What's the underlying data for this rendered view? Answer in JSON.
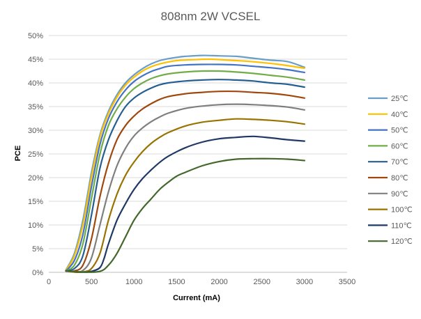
{
  "chart_data": {
    "type": "line",
    "title": "808nm 2W VCSEL",
    "xlabel": "Current (mA)",
    "ylabel": "PCE",
    "xlim": [
      0,
      3500
    ],
    "ylim": [
      0,
      50
    ],
    "x_ticks": [
      "0",
      "500",
      "1000",
      "1500",
      "2000",
      "2500",
      "3000",
      "3500"
    ],
    "y_ticks": [
      "0%",
      "5%",
      "10%",
      "15%",
      "20%",
      "25%",
      "30%",
      "35%",
      "40%",
      "45%",
      "50%"
    ],
    "grid": "horizontal",
    "legend_position": "right",
    "series": [
      {
        "name": "25℃",
        "color": "#6a9ec7",
        "points": [
          [
            200,
            0.5
          ],
          [
            300,
            4
          ],
          [
            400,
            11
          ],
          [
            500,
            21
          ],
          [
            600,
            29
          ],
          [
            700,
            34
          ],
          [
            800,
            37.5
          ],
          [
            900,
            40
          ],
          [
            1000,
            41.7
          ],
          [
            1100,
            43
          ],
          [
            1200,
            44
          ],
          [
            1300,
            44.7
          ],
          [
            1400,
            45.1
          ],
          [
            1500,
            45.4
          ],
          [
            1600,
            45.6
          ],
          [
            1800,
            45.8
          ],
          [
            2000,
            45.7
          ],
          [
            2200,
            45.6
          ],
          [
            2400,
            45.2
          ],
          [
            2600,
            44.8
          ],
          [
            2800,
            44.5
          ],
          [
            3000,
            43.3
          ]
        ]
      },
      {
        "name": "40℃",
        "color": "#ffc000",
        "points": [
          [
            200,
            0.4
          ],
          [
            300,
            3.5
          ],
          [
            400,
            10
          ],
          [
            500,
            20
          ],
          [
            600,
            28.5
          ],
          [
            700,
            33.5
          ],
          [
            800,
            37
          ],
          [
            900,
            39.5
          ],
          [
            1000,
            41.2
          ],
          [
            1100,
            42.5
          ],
          [
            1200,
            43.4
          ],
          [
            1300,
            44
          ],
          [
            1400,
            44.4
          ],
          [
            1500,
            44.7
          ],
          [
            1700,
            44.9
          ],
          [
            1900,
            45
          ],
          [
            2100,
            44.8
          ],
          [
            2300,
            44.6
          ],
          [
            2500,
            44.3
          ],
          [
            2700,
            43.9
          ],
          [
            3000,
            43.1
          ]
        ]
      },
      {
        "name": "50℃",
        "color": "#4472c4",
        "points": [
          [
            200,
            0.3
          ],
          [
            300,
            2.5
          ],
          [
            400,
            8
          ],
          [
            500,
            18
          ],
          [
            600,
            27
          ],
          [
            700,
            32.5
          ],
          [
            800,
            36
          ],
          [
            900,
            38.5
          ],
          [
            1000,
            40.3
          ],
          [
            1100,
            41.5
          ],
          [
            1200,
            42.4
          ],
          [
            1300,
            43
          ],
          [
            1400,
            43.5
          ],
          [
            1600,
            43.8
          ],
          [
            1800,
            43.9
          ],
          [
            2000,
            43.9
          ],
          [
            2200,
            43.8
          ],
          [
            2400,
            43.5
          ],
          [
            2600,
            43.2
          ],
          [
            2800,
            42.8
          ],
          [
            3000,
            42.2
          ]
        ]
      },
      {
        "name": "60℃",
        "color": "#70ad47",
        "points": [
          [
            200,
            0.3
          ],
          [
            300,
            1.5
          ],
          [
            400,
            6
          ],
          [
            500,
            15.5
          ],
          [
            600,
            25
          ],
          [
            700,
            31
          ],
          [
            800,
            34.5
          ],
          [
            900,
            37
          ],
          [
            1000,
            38.8
          ],
          [
            1100,
            40
          ],
          [
            1200,
            40.9
          ],
          [
            1300,
            41.5
          ],
          [
            1400,
            41.9
          ],
          [
            1600,
            42.3
          ],
          [
            1800,
            42.5
          ],
          [
            2000,
            42.5
          ],
          [
            2200,
            42.3
          ],
          [
            2400,
            42
          ],
          [
            2600,
            41.6
          ],
          [
            2800,
            41.2
          ],
          [
            3000,
            40.6
          ]
        ]
      },
      {
        "name": "70℃",
        "color": "#255e91",
        "points": [
          [
            200,
            0.3
          ],
          [
            300,
            0.8
          ],
          [
            400,
            3.5
          ],
          [
            500,
            12
          ],
          [
            600,
            22
          ],
          [
            700,
            28
          ],
          [
            800,
            32
          ],
          [
            900,
            35
          ],
          [
            1000,
            36.8
          ],
          [
            1100,
            38
          ],
          [
            1200,
            38.9
          ],
          [
            1300,
            39.6
          ],
          [
            1400,
            40
          ],
          [
            1600,
            40.4
          ],
          [
            1800,
            40.6
          ],
          [
            2000,
            40.7
          ],
          [
            2200,
            40.6
          ],
          [
            2400,
            40.4
          ],
          [
            2600,
            40
          ],
          [
            2800,
            39.7
          ],
          [
            3000,
            39.1
          ]
        ]
      },
      {
        "name": "80℃",
        "color": "#9e480e",
        "points": [
          [
            200,
            0.3
          ],
          [
            300,
            0.3
          ],
          [
            400,
            1.5
          ],
          [
            500,
            7
          ],
          [
            600,
            16
          ],
          [
            700,
            23
          ],
          [
            800,
            28
          ],
          [
            900,
            31
          ],
          [
            1000,
            33
          ],
          [
            1100,
            34.5
          ],
          [
            1200,
            35.6
          ],
          [
            1300,
            36.5
          ],
          [
            1400,
            37.1
          ],
          [
            1600,
            37.7
          ],
          [
            1800,
            38
          ],
          [
            2000,
            38.2
          ],
          [
            2200,
            38.2
          ],
          [
            2400,
            38
          ],
          [
            2600,
            37.8
          ],
          [
            2800,
            37.4
          ],
          [
            3000,
            36.8
          ]
        ]
      },
      {
        "name": "90℃",
        "color": "#7f7f7f",
        "points": [
          [
            200,
            0.3
          ],
          [
            300,
            0.1
          ],
          [
            400,
            0.4
          ],
          [
            500,
            3
          ],
          [
            600,
            10
          ],
          [
            700,
            17
          ],
          [
            800,
            22.5
          ],
          [
            900,
            26.2
          ],
          [
            1000,
            28.8
          ],
          [
            1100,
            30.5
          ],
          [
            1200,
            31.8
          ],
          [
            1300,
            32.8
          ],
          [
            1400,
            33.6
          ],
          [
            1600,
            34.6
          ],
          [
            1800,
            35.1
          ],
          [
            2000,
            35.4
          ],
          [
            2200,
            35.5
          ],
          [
            2400,
            35.4
          ],
          [
            2600,
            35.2
          ],
          [
            2800,
            34.9
          ],
          [
            3000,
            34.3
          ]
        ]
      },
      {
        "name": "100℃",
        "color": "#997300",
        "points": [
          [
            200,
            0.3
          ],
          [
            300,
            0.05
          ],
          [
            400,
            0.1
          ],
          [
            500,
            0.8
          ],
          [
            600,
            4
          ],
          [
            700,
            11
          ],
          [
            800,
            16.5
          ],
          [
            900,
            20.5
          ],
          [
            1000,
            23.3
          ],
          [
            1100,
            25.5
          ],
          [
            1200,
            27.2
          ],
          [
            1300,
            28.5
          ],
          [
            1400,
            29.5
          ],
          [
            1600,
            30.9
          ],
          [
            1800,
            31.7
          ],
          [
            2000,
            32.1
          ],
          [
            2200,
            32.4
          ],
          [
            2400,
            32.3
          ],
          [
            2600,
            32.1
          ],
          [
            2800,
            31.8
          ],
          [
            3000,
            31.3
          ]
        ]
      },
      {
        "name": "110℃",
        "color": "#1f3864",
        "points": [
          [
            200,
            0.3
          ],
          [
            400,
            0.05
          ],
          [
            500,
            0.2
          ],
          [
            600,
            1
          ],
          [
            650,
            3
          ],
          [
            700,
            6
          ],
          [
            800,
            11
          ],
          [
            900,
            14.5
          ],
          [
            1000,
            17.5
          ],
          [
            1100,
            19.8
          ],
          [
            1200,
            21.6
          ],
          [
            1300,
            23.2
          ],
          [
            1400,
            24.5
          ],
          [
            1600,
            26.3
          ],
          [
            1800,
            27.5
          ],
          [
            2000,
            28.2
          ],
          [
            2200,
            28.5
          ],
          [
            2400,
            28.7
          ],
          [
            2600,
            28.4
          ],
          [
            2800,
            28
          ],
          [
            3000,
            27.7
          ]
        ]
      },
      {
        "name": "120℃",
        "color": "#43682b",
        "points": [
          [
            200,
            0.3
          ],
          [
            400,
            0.05
          ],
          [
            600,
            0.2
          ],
          [
            700,
            1.5
          ],
          [
            800,
            4
          ],
          [
            900,
            7.5
          ],
          [
            1000,
            11
          ],
          [
            1100,
            13.5
          ],
          [
            1200,
            15.5
          ],
          [
            1300,
            17.5
          ],
          [
            1400,
            19
          ],
          [
            1500,
            20.3
          ],
          [
            1600,
            21.1
          ],
          [
            1800,
            22.5
          ],
          [
            2000,
            23.4
          ],
          [
            2200,
            23.9
          ],
          [
            2400,
            24
          ],
          [
            2600,
            24
          ],
          [
            2800,
            23.9
          ],
          [
            3000,
            23.6
          ]
        ]
      }
    ]
  }
}
